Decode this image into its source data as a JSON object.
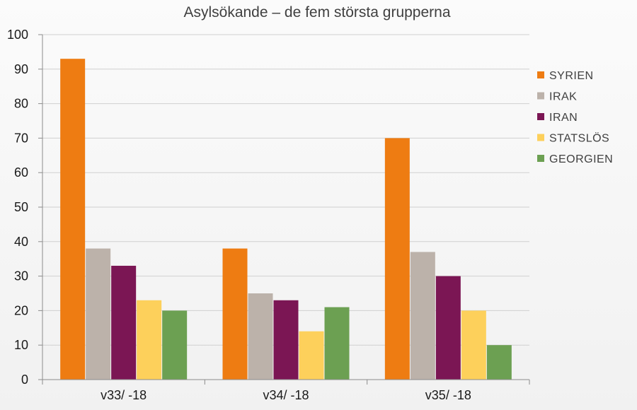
{
  "chart_data": {
    "type": "bar",
    "title": "Asylsökande – de fem största grupperna",
    "xlabel": "",
    "ylabel": "",
    "categories": [
      "v33/ -18",
      "v34/ -18",
      "v35/ -18"
    ],
    "series": [
      {
        "name": "SYRIEN",
        "color": "#ee7c12",
        "values": [
          93,
          38,
          70
        ]
      },
      {
        "name": "IRAK",
        "color": "#bcb2aa",
        "values": [
          38,
          25,
          37
        ]
      },
      {
        "name": "IRAN",
        "color": "#7b1654",
        "values": [
          33,
          23,
          30
        ]
      },
      {
        "name": "STATSLÖS",
        "color": "#fdd05b",
        "values": [
          23,
          14,
          20
        ]
      },
      {
        "name": "GEORGIEN",
        "color": "#6ca052",
        "values": [
          20,
          21,
          10
        ]
      }
    ],
    "ylim": [
      0,
      100
    ],
    "yticks": [
      0,
      10,
      20,
      30,
      40,
      50,
      60,
      70,
      80,
      90,
      100
    ],
    "grid": true,
    "legend_position": "right"
  }
}
